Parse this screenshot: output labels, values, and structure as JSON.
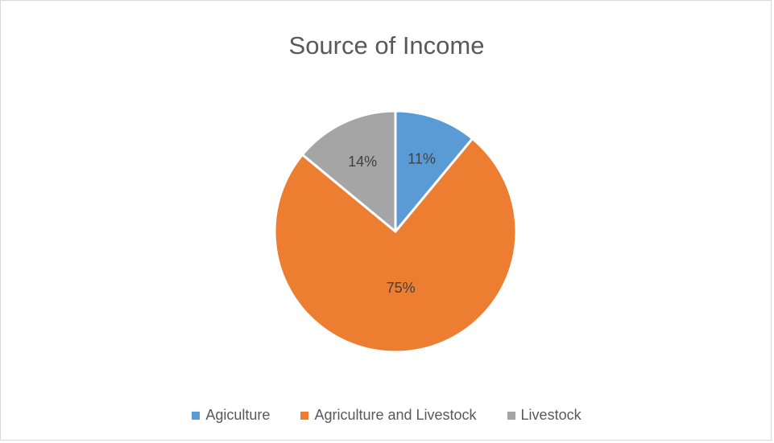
{
  "chart_data": {
    "type": "pie",
    "title": "Source of Income",
    "categories": [
      "Agiculture",
      "Agriculture and Livestock",
      "Livestock"
    ],
    "values": [
      11,
      75,
      14
    ],
    "labels": [
      "11%",
      "75%",
      "14%"
    ],
    "colors": [
      "#5b9bd5",
      "#ed7d31",
      "#a5a5a5"
    ],
    "start": "12 o'clock, clockwise",
    "legend": "bottom"
  }
}
